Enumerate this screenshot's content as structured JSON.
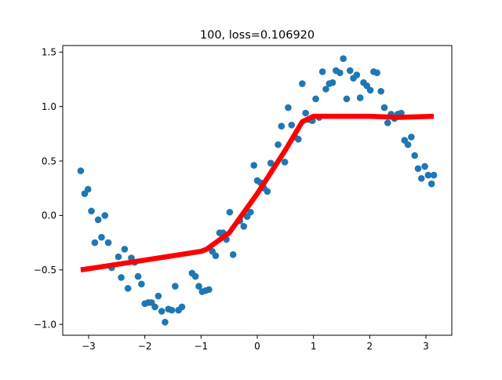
{
  "chart_data": {
    "type": "scatter",
    "title": "100, loss=0.106920",
    "xlabel": "",
    "ylabel": "",
    "xlim": [
      -3.46,
      3.46
    ],
    "ylim": [
      -1.1,
      1.56
    ],
    "grid": false,
    "xticks": [
      -3,
      -2,
      -1,
      0,
      1,
      2,
      3
    ],
    "xtick_labels": [
      "−3",
      "−2",
      "−1",
      "0",
      "1",
      "2",
      "3"
    ],
    "yticks": [
      -1.0,
      -0.5,
      0.0,
      0.5,
      1.0,
      1.5
    ],
    "ytick_labels": [
      "−1.0",
      "−0.5",
      "0.0",
      "0.5",
      "1.0",
      "1.5"
    ],
    "series": [
      {
        "type": "scatter",
        "color": "#1f77b4",
        "points": [
          [
            -3.14,
            0.41
          ],
          [
            -3.07,
            0.2
          ],
          [
            -3.01,
            0.24
          ],
          [
            -2.95,
            0.04
          ],
          [
            -2.89,
            -0.25
          ],
          [
            -2.83,
            -0.04
          ],
          [
            -2.77,
            -0.2
          ],
          [
            -2.71,
            0.0
          ],
          [
            -2.65,
            -0.25
          ],
          [
            -2.59,
            -0.48
          ],
          [
            -2.47,
            -0.38
          ],
          [
            -2.42,
            -0.57
          ],
          [
            -2.36,
            -0.31
          ],
          [
            -2.3,
            -0.67
          ],
          [
            -2.24,
            -0.39
          ],
          [
            -2.18,
            -0.43
          ],
          [
            -2.12,
            -0.56
          ],
          [
            -2.06,
            -0.63
          ],
          [
            -2.0,
            -0.81
          ],
          [
            -1.94,
            -0.8
          ],
          [
            -1.88,
            -0.8
          ],
          [
            -1.82,
            -0.84
          ],
          [
            -1.76,
            -0.74
          ],
          [
            -1.7,
            -0.88
          ],
          [
            -1.64,
            -0.98
          ],
          [
            -1.58,
            -0.86
          ],
          [
            -1.52,
            -0.87
          ],
          [
            -1.46,
            -0.65
          ],
          [
            -1.4,
            -0.87
          ],
          [
            -1.34,
            -0.84
          ],
          [
            -1.16,
            -0.53
          ],
          [
            -1.1,
            -0.56
          ],
          [
            -1.04,
            -0.65
          ],
          [
            -0.98,
            -0.7
          ],
          [
            -0.92,
            -0.69
          ],
          [
            -0.86,
            -0.68
          ],
          [
            -0.8,
            -0.33
          ],
          [
            -0.74,
            -0.37
          ],
          [
            -0.67,
            -0.16
          ],
          [
            -0.61,
            -0.16
          ],
          [
            -0.55,
            -0.22
          ],
          [
            -0.49,
            0.03
          ],
          [
            -0.43,
            -0.36
          ],
          [
            -0.31,
            -0.05
          ],
          [
            -0.24,
            -0.1
          ],
          [
            -0.18,
            -0.01
          ],
          [
            -0.12,
            0.03
          ],
          [
            -0.06,
            0.46
          ],
          [
            0.0,
            0.32
          ],
          [
            0.06,
            0.3
          ],
          [
            0.12,
            0.25
          ],
          [
            0.18,
            0.22
          ],
          [
            0.24,
            0.48
          ],
          [
            0.37,
            0.65
          ],
          [
            0.43,
            0.82
          ],
          [
            0.49,
            0.49
          ],
          [
            0.55,
            0.99
          ],
          [
            0.61,
            0.83
          ],
          [
            0.67,
            0.72
          ],
          [
            0.73,
            0.7
          ],
          [
            0.8,
            1.21
          ],
          [
            0.86,
            0.94
          ],
          [
            0.92,
            0.88
          ],
          [
            0.98,
            0.87
          ],
          [
            1.04,
            1.07
          ],
          [
            1.1,
            0.9
          ],
          [
            1.16,
            1.32
          ],
          [
            1.22,
            1.16
          ],
          [
            1.28,
            1.21
          ],
          [
            1.34,
            1.22
          ],
          [
            1.4,
            1.33
          ],
          [
            1.47,
            1.31
          ],
          [
            1.53,
            1.44
          ],
          [
            1.59,
            1.07
          ],
          [
            1.65,
            1.33
          ],
          [
            1.71,
            1.26
          ],
          [
            1.77,
            1.29
          ],
          [
            1.83,
            1.08
          ],
          [
            1.89,
            1.22
          ],
          [
            1.95,
            1.19
          ],
          [
            2.01,
            1.15
          ],
          [
            2.07,
            1.32
          ],
          [
            2.13,
            1.31
          ],
          [
            2.2,
            1.14
          ],
          [
            2.26,
            0.99
          ],
          [
            2.32,
            0.85
          ],
          [
            2.38,
            0.93
          ],
          [
            2.44,
            0.89
          ],
          [
            2.5,
            0.93
          ],
          [
            2.56,
            0.94
          ],
          [
            2.62,
            0.69
          ],
          [
            2.68,
            0.65
          ],
          [
            2.74,
            0.72
          ],
          [
            2.8,
            0.55
          ],
          [
            2.86,
            0.43
          ],
          [
            2.92,
            0.34
          ],
          [
            2.98,
            0.45
          ],
          [
            3.04,
            0.37
          ],
          [
            3.1,
            0.29
          ],
          [
            3.14,
            0.37
          ]
        ]
      },
      {
        "type": "line",
        "color": "#ff0000",
        "points": [
          [
            -3.14,
            -0.5
          ],
          [
            -2.5,
            -0.45
          ],
          [
            -2.0,
            -0.41
          ],
          [
            -1.5,
            -0.37
          ],
          [
            -1.0,
            -0.33
          ],
          [
            -0.9,
            -0.31
          ],
          [
            -0.5,
            -0.16
          ],
          [
            0.0,
            0.2
          ],
          [
            0.5,
            0.6
          ],
          [
            0.8,
            0.86
          ],
          [
            1.0,
            0.91
          ],
          [
            2.0,
            0.91
          ],
          [
            2.5,
            0.9
          ],
          [
            3.14,
            0.91
          ]
        ]
      }
    ]
  }
}
